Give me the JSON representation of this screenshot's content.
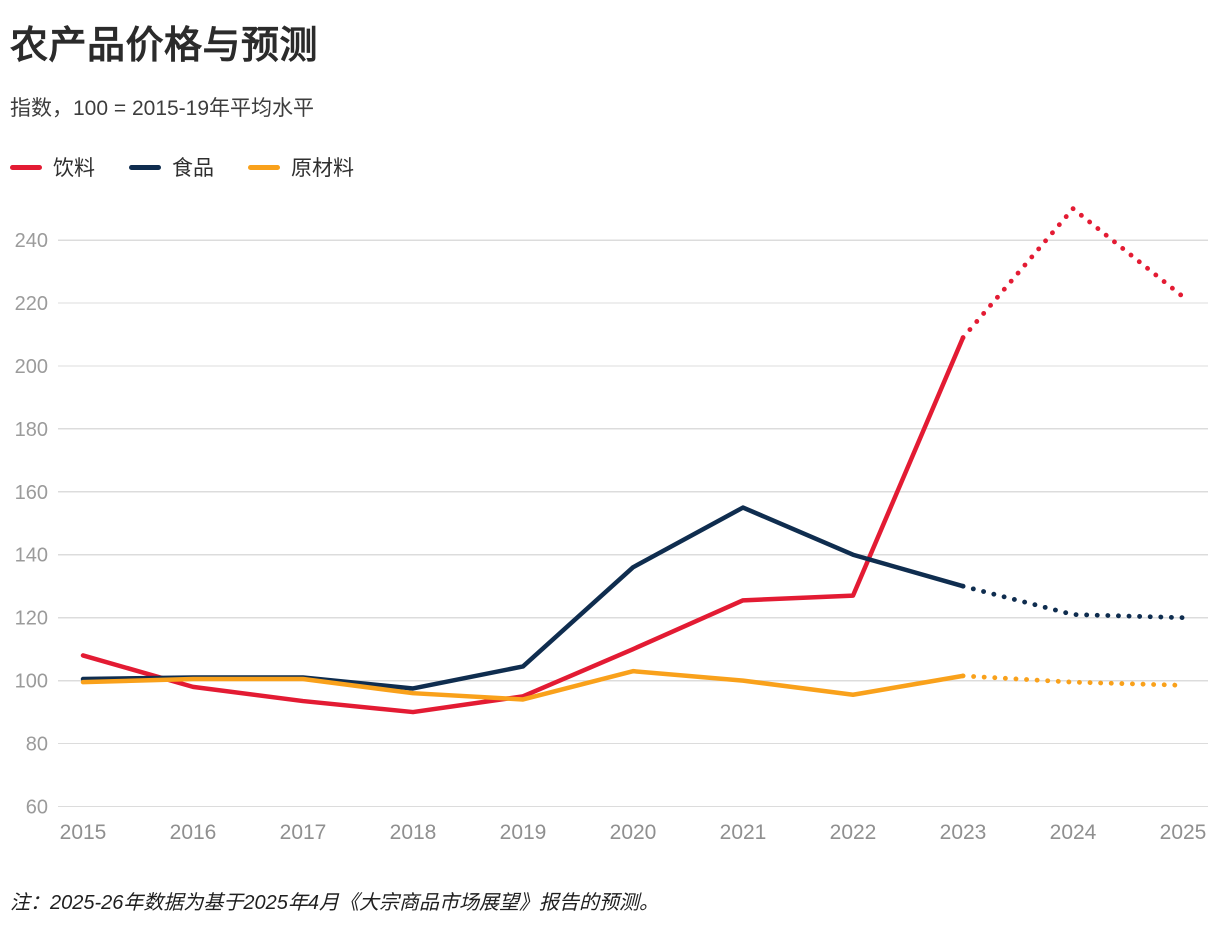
{
  "header": {
    "title": "农产品价格与预测",
    "subtitle": "指数，100 = 2015-19年平均水平"
  },
  "note": "注：2025-26年数据为基于2025年4月《大宗商品市场展望》报告的预测。",
  "chart_data": {
    "type": "line",
    "title": "农产品价格与预测",
    "subtitle": "指数，100 = 2015-19年平均水平",
    "x": [
      2015,
      2016,
      2017,
      2018,
      2019,
      2020,
      2021,
      2022,
      2023,
      2024,
      2025
    ],
    "series": [
      {
        "name": "饮料",
        "slug": "beverages",
        "color": "#e31b33",
        "values": [
          108,
          98,
          93.5,
          90,
          95,
          110,
          125.5,
          127,
          209,
          250,
          222
        ]
      },
      {
        "name": "食品",
        "slug": "food",
        "color": "#0f2d4f",
        "values": [
          100.5,
          101,
          101,
          97.5,
          104.5,
          136,
          155,
          140,
          130,
          121,
          120
        ]
      },
      {
        "name": "原材料",
        "slug": "raw-materials",
        "color": "#f9a11b",
        "values": [
          99.5,
          100.5,
          100.5,
          96,
          94,
          103,
          100,
          95.5,
          101.5,
          99.5,
          98.5
        ]
      }
    ],
    "forecast_start_index": 8,
    "forecast_style": "dotted",
    "ylim": [
      60,
      252
    ],
    "y_ticks": [
      60,
      80,
      100,
      120,
      140,
      160,
      180,
      200,
      220,
      240
    ],
    "grid": "horizontal",
    "legend_position": "top-left"
  }
}
